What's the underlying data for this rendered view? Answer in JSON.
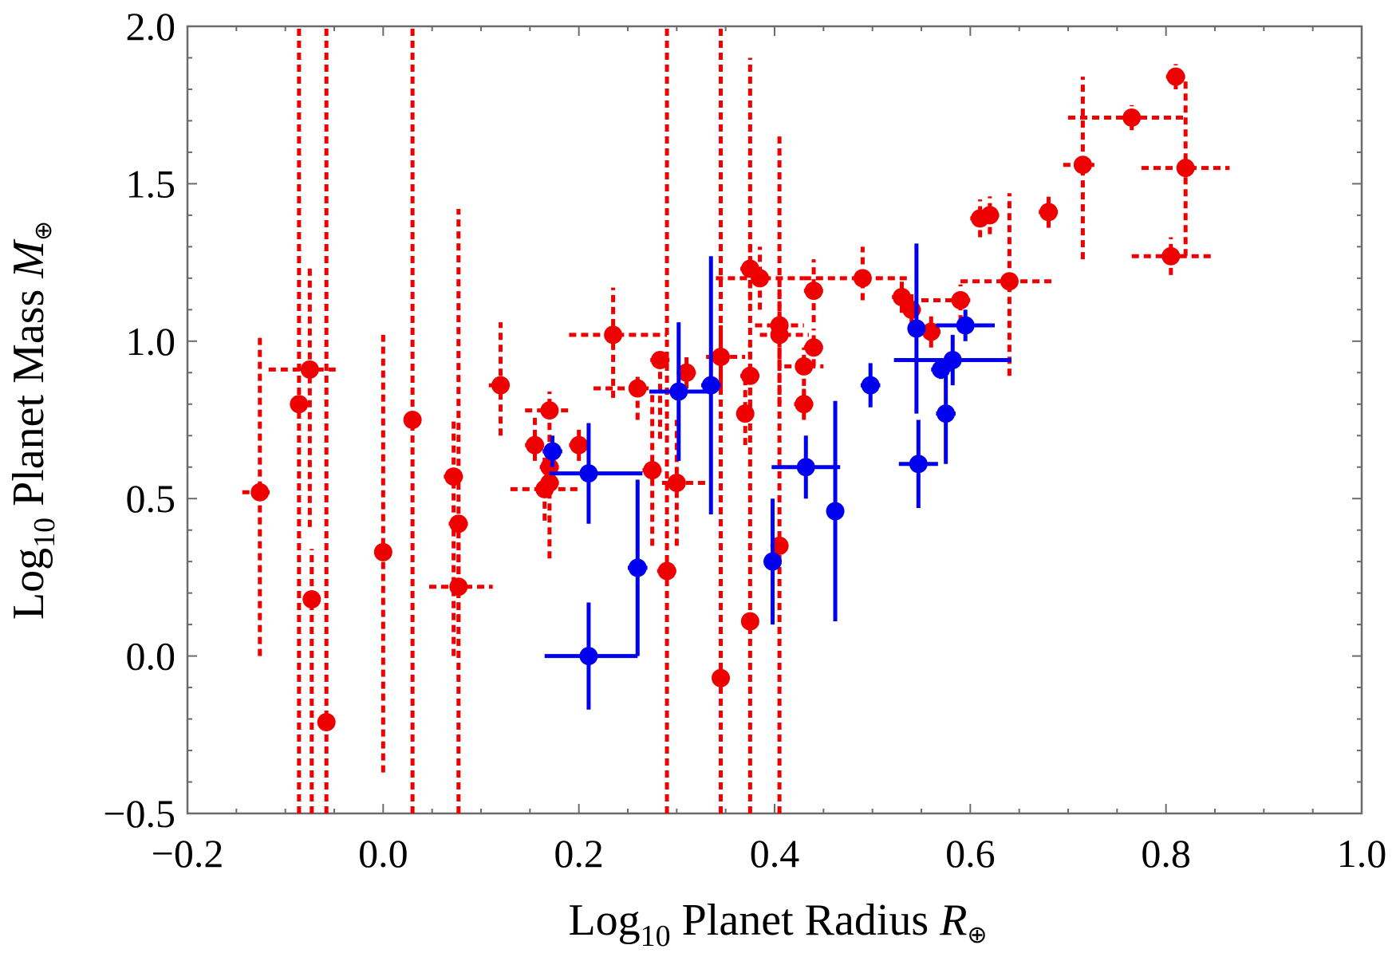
{
  "chart_data": {
    "type": "scatter",
    "title": "",
    "xlabel": {
      "prefix": "Log",
      "sub": "10",
      "text": " Planet Radius ",
      "var": "R",
      "varsub": "⊕"
    },
    "ylabel": {
      "prefix": "Log",
      "sub": "10",
      "text": " Planet Mass ",
      "var": "M",
      "varsub": "⊕"
    },
    "xlim": [
      -0.2,
      1.0
    ],
    "ylim": [
      -0.5,
      2.0
    ],
    "xticks": [
      -0.2,
      0.0,
      0.2,
      0.4,
      0.6,
      0.8,
      1.0
    ],
    "xtick_labels": [
      "−0.2",
      "0.0",
      "0.2",
      "0.4",
      "0.6",
      "0.8",
      "1.0"
    ],
    "yticks": [
      -0.5,
      0.0,
      0.5,
      1.0,
      1.5,
      2.0
    ],
    "ytick_labels": [
      "−0.5",
      "0.0",
      "0.5",
      "1.0",
      "1.5",
      "2.0"
    ],
    "grid": false,
    "series": [
      {
        "name": "red (dashed error bars)",
        "color": "#ee0000",
        "line_style": "dashed",
        "points": [
          {
            "x": -0.126,
            "y": 0.52,
            "xerr": [
              0.018,
              0.01
            ],
            "yerr": [
              0.52,
              0.5
            ]
          },
          {
            "x": -0.075,
            "y": 0.91,
            "xerr": [
              0.042,
              0.03
            ],
            "yerr": [
              0.5,
              0.33
            ]
          },
          {
            "x": -0.073,
            "y": 0.18,
            "xerr": [
              0.005,
              0.005
            ],
            "yerr": [
              0.68,
              0.16
            ]
          },
          {
            "x": -0.058,
            "y": -0.21,
            "xerr": [
              0.005,
              0.005
            ],
            "yerr": [
              0.29,
              2.21
            ]
          },
          {
            "x": -0.086,
            "y": 0.8,
            "xerr": [
              0.0,
              0.0
            ],
            "yerr": [
              1.3,
              1.2
            ]
          },
          {
            "x": 0.0,
            "y": 0.33,
            "xerr": [
              0.005,
              0.005
            ],
            "yerr": [
              0.7,
              0.69
            ]
          },
          {
            "x": 0.03,
            "y": 0.75,
            "xerr": [
              0.0,
              0.0
            ],
            "yerr": [
              1.25,
              1.25
            ]
          },
          {
            "x": 0.072,
            "y": 0.57,
            "xerr": [
              0.01,
              0.01
            ],
            "yerr": [
              0.57,
              0.19
            ]
          },
          {
            "x": 0.077,
            "y": 0.42,
            "xerr": [
              0.01,
              0.01
            ],
            "yerr": [
              0.31,
              1.0
            ]
          },
          {
            "x": 0.077,
            "y": 0.22,
            "xerr": [
              0.03,
              0.035
            ],
            "yerr": [
              0.72,
              0.2
            ]
          },
          {
            "x": 0.12,
            "y": 0.86,
            "xerr": [
              0.012,
              0.012
            ],
            "yerr": [
              0.16,
              0.2
            ]
          },
          {
            "x": 0.155,
            "y": 0.67,
            "xerr": [
              0.01,
              0.01
            ],
            "yerr": [
              0.05,
              0.1
            ]
          },
          {
            "x": 0.165,
            "y": 0.53,
            "xerr": [
              0.035,
              0.035
            ],
            "yerr": [
              0.1,
              0.1
            ]
          },
          {
            "x": 0.17,
            "y": 0.78,
            "xerr": [
              0.025,
              0.02
            ],
            "yerr": [
              0.1,
              0.06
            ]
          },
          {
            "x": 0.17,
            "y": 0.6,
            "xerr": [
              0.01,
              0.01
            ],
            "yerr": [
              0.05,
              0.05
            ]
          },
          {
            "x": 0.17,
            "y": 0.55,
            "xerr": [
              0.01,
              0.01
            ],
            "yerr": [
              0.24,
              0.1
            ]
          },
          {
            "x": 0.2,
            "y": 0.67,
            "xerr": [
              0.01,
              0.01
            ],
            "yerr": [
              0.05,
              0.05
            ]
          },
          {
            "x": 0.235,
            "y": 1.02,
            "xerr": [
              0.045,
              0.055
            ],
            "yerr": [
              0.2,
              0.15
            ]
          },
          {
            "x": 0.26,
            "y": 0.85,
            "xerr": [
              0.045,
              0.015
            ],
            "yerr": [
              0.1,
              0.05
            ]
          },
          {
            "x": 0.275,
            "y": 0.59,
            "xerr": [
              0.01,
              0.01
            ],
            "yerr": [
              0.24,
              0.24
            ]
          },
          {
            "x": 0.283,
            "y": 0.94,
            "xerr": [
              0.01,
              0.01
            ],
            "yerr": [
              0.25,
              0.0
            ]
          },
          {
            "x": 0.29,
            "y": 0.27,
            "xerr": [
              0.01,
              0.01
            ],
            "yerr": [
              0.77,
              1.73
            ]
          },
          {
            "x": 0.3,
            "y": 0.55,
            "xerr": [
              0.015,
              0.035
            ],
            "yerr": [
              0.2,
              0.2
            ]
          },
          {
            "x": 0.31,
            "y": 0.9,
            "xerr": [
              0.01,
              0.01
            ],
            "yerr": [
              0.05,
              0.05
            ]
          },
          {
            "x": 0.345,
            "y": 0.95,
            "xerr": [
              0.015,
              0.025
            ],
            "yerr": [
              0.1,
              0.1
            ]
          },
          {
            "x": 0.345,
            "y": -0.07,
            "xerr": [
              0.005,
              0.005
            ],
            "yerr": [
              0.43,
              2.07
            ]
          },
          {
            "x": 0.37,
            "y": 0.77,
            "xerr": [
              0.005,
              0.005
            ],
            "yerr": [
              0.1,
              0.1
            ]
          },
          {
            "x": 0.375,
            "y": 1.23,
            "xerr": [
              0.01,
              0.01
            ],
            "yerr": [
              0.1,
              0.08
            ]
          },
          {
            "x": 0.375,
            "y": 0.89,
            "xerr": [
              0.01,
              0.01
            ],
            "yerr": [
              0.1,
              0.1
            ]
          },
          {
            "x": 0.375,
            "y": 0.11,
            "xerr": [
              0.005,
              0.005
            ],
            "yerr": [
              0.61,
              1.79
            ]
          },
          {
            "x": 0.385,
            "y": 1.2,
            "xerr": [
              0.045,
              0.045
            ],
            "yerr": [
              0.1,
              0.1
            ]
          },
          {
            "x": 0.405,
            "y": 1.05,
            "xerr": [
              0.025,
              0.025
            ],
            "yerr": [
              0.25,
              0.18
            ]
          },
          {
            "x": 0.405,
            "y": 1.02,
            "xerr": [
              0.02,
              0.03
            ],
            "yerr": [
              0.1,
              0.1
            ]
          },
          {
            "x": 0.405,
            "y": 0.35,
            "xerr": [
              0.005,
              0.005
            ],
            "yerr": [
              0.85,
              1.3
            ]
          },
          {
            "x": 0.43,
            "y": 0.92,
            "xerr": [
              0.02,
              0.02
            ],
            "yerr": [
              0.1,
              0.06
            ]
          },
          {
            "x": 0.44,
            "y": 1.16,
            "xerr": [
              0.01,
              0.01
            ],
            "yerr": [
              0.1,
              0.1
            ]
          },
          {
            "x": 0.44,
            "y": 0.98,
            "xerr": [
              0.01,
              0.01
            ],
            "yerr": [
              0.06,
              0.06
            ]
          },
          {
            "x": 0.43,
            "y": 0.8,
            "xerr": [
              0.01,
              0.01
            ],
            "yerr": [
              0.05,
              0.05
            ]
          },
          {
            "x": 0.49,
            "y": 1.2,
            "xerr": [
              0.06,
              0.05
            ],
            "yerr": [
              0.07,
              0.1
            ]
          },
          {
            "x": 0.53,
            "y": 1.14,
            "xerr": [
              0.01,
              0.01
            ],
            "yerr": [
              0.05,
              0.05
            ]
          },
          {
            "x": 0.54,
            "y": 1.1,
            "xerr": [
              0.01,
              0.01
            ],
            "yerr": [
              0.05,
              0.05
            ]
          },
          {
            "x": 0.56,
            "y": 1.03,
            "xerr": [
              0.01,
              0.01
            ],
            "yerr": [
              0.05,
              0.05
            ]
          },
          {
            "x": 0.59,
            "y": 1.13,
            "xerr": [
              0.04,
              0.01
            ],
            "yerr": [
              0.07,
              0.05
            ]
          },
          {
            "x": 0.61,
            "y": 1.39,
            "xerr": [
              0.01,
              0.01
            ],
            "yerr": [
              0.06,
              0.06
            ]
          },
          {
            "x": 0.62,
            "y": 1.4,
            "xerr": [
              0.01,
              0.01
            ],
            "yerr": [
              0.06,
              0.06
            ]
          },
          {
            "x": 0.64,
            "y": 1.19,
            "xerr": [
              0.05,
              0.045
            ],
            "yerr": [
              0.3,
              0.28
            ]
          },
          {
            "x": 0.68,
            "y": 1.41,
            "xerr": [
              0.01,
              0.01
            ],
            "yerr": [
              0.05,
              0.05
            ]
          },
          {
            "x": 0.715,
            "y": 1.56,
            "xerr": [
              0.02,
              0.015
            ],
            "yerr": [
              0.3,
              0.28
            ]
          },
          {
            "x": 0.765,
            "y": 1.71,
            "xerr": [
              0.065,
              0.055
            ],
            "yerr": [
              0.04,
              0.04
            ]
          },
          {
            "x": 0.805,
            "y": 1.27,
            "xerr": [
              0.04,
              0.045
            ],
            "yerr": [
              0.06,
              0.06
            ]
          },
          {
            "x": 0.81,
            "y": 1.84,
            "xerr": [
              0.01,
              0.01
            ],
            "yerr": [
              0.04,
              0.04
            ]
          },
          {
            "x": 0.82,
            "y": 1.55,
            "xerr": [
              0.045,
              0.045
            ],
            "yerr": [
              0.28,
              0.28
            ]
          }
        ]
      },
      {
        "name": "blue (solid error bars)",
        "color": "#0000ee",
        "line_style": "solid",
        "points": [
          {
            "x": 0.173,
            "y": 0.65,
            "xerr": [
              0.01,
              0.01
            ],
            "yerr": [
              0.05,
              0.05
            ]
          },
          {
            "x": 0.21,
            "y": 0.58,
            "xerr": [
              0.04,
              0.055
            ],
            "yerr": [
              0.16,
              0.16
            ]
          },
          {
            "x": 0.21,
            "y": 0.0,
            "xerr": [
              0.045,
              0.05
            ],
            "yerr": [
              0.17,
              0.17
            ]
          },
          {
            "x": 0.26,
            "y": 0.28,
            "xerr": [
              0.01,
              0.01
            ],
            "yerr": [
              0.28,
              0.28
            ]
          },
          {
            "x": 0.302,
            "y": 0.84,
            "xerr": [
              0.03,
              0.03
            ],
            "yerr": [
              0.22,
              0.22
            ]
          },
          {
            "x": 0.335,
            "y": 0.86,
            "xerr": [
              0.01,
              0.01
            ],
            "yerr": [
              0.41,
              0.41
            ]
          },
          {
            "x": 0.398,
            "y": 0.3,
            "xerr": [
              0.005,
              0.005
            ],
            "yerr": [
              0.2,
              0.2
            ]
          },
          {
            "x": 0.432,
            "y": 0.6,
            "xerr": [
              0.035,
              0.035
            ],
            "yerr": [
              0.1,
              0.1
            ]
          },
          {
            "x": 0.462,
            "y": 0.46,
            "xerr": [
              0.005,
              0.005
            ],
            "yerr": [
              0.35,
              0.35
            ]
          },
          {
            "x": 0.498,
            "y": 0.86,
            "xerr": [
              0.01,
              0.01
            ],
            "yerr": [
              0.07,
              0.07
            ]
          },
          {
            "x": 0.545,
            "y": 1.04,
            "xerr": [
              0.005,
              0.005
            ],
            "yerr": [
              0.27,
              0.27
            ]
          },
          {
            "x": 0.547,
            "y": 0.61,
            "xerr": [
              0.02,
              0.02
            ],
            "yerr": [
              0.14,
              0.14
            ]
          },
          {
            "x": 0.57,
            "y": 0.91,
            "xerr": [
              0.01,
              0.01
            ],
            "yerr": [
              0.03,
              0.03
            ]
          },
          {
            "x": 0.575,
            "y": 0.77,
            "xerr": [
              0.01,
              0.01
            ],
            "yerr": [
              0.16,
              0.16
            ]
          },
          {
            "x": 0.582,
            "y": 0.94,
            "xerr": [
              0.06,
              0.06
            ],
            "yerr": [
              0.08,
              0.08
            ]
          },
          {
            "x": 0.595,
            "y": 1.05,
            "xerr": [
              0.03,
              0.03
            ],
            "yerr": [
              0.05,
              0.05
            ]
          }
        ]
      }
    ]
  }
}
